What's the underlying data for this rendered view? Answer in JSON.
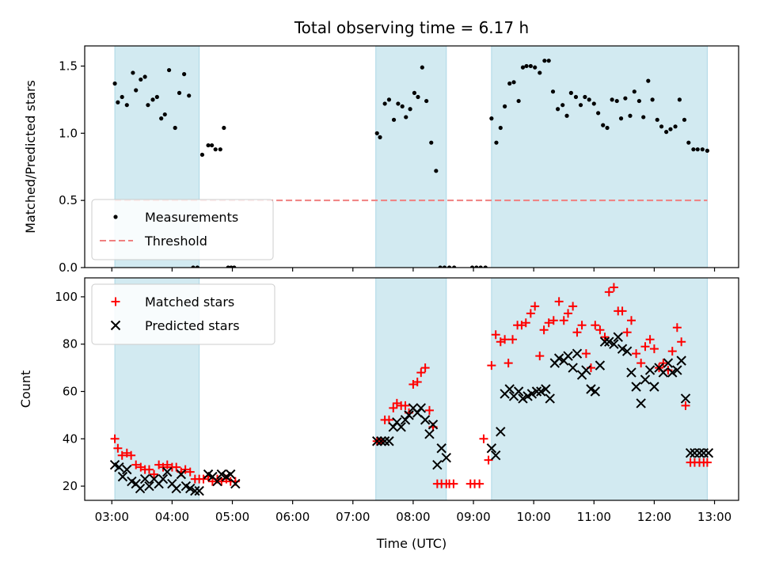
{
  "chart_data": {
    "title": "Total observing time = 6.17 h",
    "xlabel": "Time (UTC)",
    "x_unit": "hours UTC",
    "xlim": [
      2.55,
      13.4
    ],
    "x_ticks": [
      3,
      4,
      5,
      6,
      7,
      8,
      9,
      10,
      11,
      12,
      13
    ],
    "x_tick_labels": [
      "03:00",
      "04:00",
      "05:00",
      "06:00",
      "07:00",
      "08:00",
      "09:00",
      "10:00",
      "11:00",
      "12:00",
      "13:00"
    ],
    "observing_windows": [
      [
        3.05,
        4.45
      ],
      [
        7.38,
        8.55
      ],
      [
        9.3,
        12.88
      ]
    ],
    "window_color": "#add8e6",
    "panels": [
      {
        "type": "scatter",
        "ylabel": "Matched/Predicted stars",
        "ylim": [
          0,
          1.65
        ],
        "y_ticks": [
          0.0,
          0.5,
          1.0,
          1.5
        ],
        "y_tick_labels": [
          "0.0",
          "0.5",
          "1.0",
          "1.5"
        ],
        "legend_position": "lower-left",
        "series": [
          {
            "name": "Measurements",
            "marker": "dot",
            "color": "#000000",
            "x": [
              3.05,
              3.1,
              3.17,
              3.25,
              3.35,
              3.4,
              3.48,
              3.55,
              3.6,
              3.68,
              3.75,
              3.82,
              3.88,
              3.95,
              4.05,
              4.12,
              4.2,
              4.28,
              4.35,
              4.42,
              4.5,
              4.6,
              4.66,
              4.72,
              4.8,
              4.86,
              4.93,
              4.98,
              5.03
            ],
            "y": [
              1.37,
              1.23,
              1.27,
              1.21,
              1.45,
              1.32,
              1.4,
              1.42,
              1.21,
              1.25,
              1.27,
              1.11,
              1.14,
              1.47,
              1.04,
              1.3,
              1.44,
              1.28,
              0.0,
              0.0,
              0.84,
              0.91,
              0.91,
              0.88,
              0.88,
              1.04,
              0.0,
              0.0,
              0.0
            ]
          },
          {
            "name": "",
            "marker": "dot",
            "color": "#000000",
            "x": [
              7.4,
              7.45,
              7.53,
              7.6,
              7.68,
              7.75,
              7.82,
              7.88,
              7.95,
              8.02,
              8.08,
              8.15,
              8.22,
              8.3,
              8.38,
              8.45,
              8.52,
              8.6,
              8.68,
              8.98,
              9.05,
              9.12,
              9.2
            ],
            "y": [
              1.0,
              0.97,
              1.22,
              1.25,
              1.1,
              1.22,
              1.2,
              1.12,
              1.18,
              1.3,
              1.27,
              1.49,
              1.24,
              0.93,
              0.72,
              0.0,
              0.0,
              0.0,
              0.0,
              0.0,
              0.0,
              0.0,
              0.0
            ]
          },
          {
            "name": "",
            "marker": "dot",
            "color": "#000000",
            "x": [
              9.3,
              9.38,
              9.45,
              9.52,
              9.6,
              9.67,
              9.75,
              9.82,
              9.88,
              9.95,
              10.02,
              10.1,
              10.18,
              10.25,
              10.32,
              10.4,
              10.48,
              10.55,
              10.62,
              10.7,
              10.78,
              10.85,
              10.92,
              11.0,
              11.07,
              11.15,
              11.22,
              11.3,
              11.38,
              11.45,
              11.52,
              11.6,
              11.67,
              11.75,
              11.82,
              11.9,
              11.97,
              12.05,
              12.12,
              12.2,
              12.27,
              12.35,
              12.42,
              12.5,
              12.57,
              12.65,
              12.72,
              12.8,
              12.88
            ],
            "y": [
              1.11,
              0.93,
              1.04,
              1.2,
              1.37,
              1.38,
              1.24,
              1.49,
              1.5,
              1.5,
              1.49,
              1.45,
              1.54,
              1.54,
              1.31,
              1.18,
              1.21,
              1.13,
              1.3,
              1.27,
              1.21,
              1.27,
              1.25,
              1.22,
              1.15,
              1.06,
              1.04,
              1.25,
              1.24,
              1.11,
              1.26,
              1.13,
              1.31,
              1.24,
              1.12,
              1.39,
              1.25,
              1.1,
              1.05,
              1.01,
              1.03,
              1.05,
              1.25,
              1.1,
              0.93,
              0.88,
              0.88,
              0.88,
              0.87
            ]
          }
        ],
        "threshold": {
          "name": "Threshold",
          "y": 0.5,
          "x_range": [
            3.05,
            12.88
          ],
          "color": "#f08080"
        }
      },
      {
        "type": "scatter",
        "ylabel": "Count",
        "ylim": [
          14,
          108
        ],
        "y_ticks": [
          20,
          40,
          60,
          80,
          100
        ],
        "y_tick_labels": [
          "20",
          "40",
          "60",
          "80",
          "100"
        ],
        "legend_position": "top-left",
        "series": [
          {
            "name": "Matched stars",
            "marker": "plus",
            "color": "#ff0000",
            "x": [
              3.05,
              3.1,
              3.17,
              3.25,
              3.32,
              3.4,
              3.48,
              3.55,
              3.62,
              3.7,
              3.78,
              3.85,
              3.92,
              4.0,
              4.07,
              4.15,
              4.22,
              4.3,
              4.38,
              4.45,
              4.52,
              4.6,
              4.67,
              4.75,
              4.82,
              4.9,
              4.97,
              5.05,
              7.4,
              7.47,
              7.53,
              7.6,
              7.67,
              7.73,
              7.8,
              7.87,
              7.93,
              8.0,
              8.07,
              8.13,
              8.2,
              8.27,
              8.33,
              8.4,
              8.47,
              8.55,
              8.6,
              8.67,
              8.95,
              9.02,
              9.1,
              9.17,
              9.25,
              9.3,
              9.37,
              9.45,
              9.52,
              9.58,
              9.65,
              9.73,
              9.8,
              9.87,
              9.95,
              10.02,
              10.1,
              10.17,
              10.25,
              10.33,
              10.42,
              10.5,
              10.57,
              10.65,
              10.72,
              10.8,
              10.87,
              10.95,
              11.02,
              11.1,
              11.18,
              11.25,
              11.33,
              11.4,
              11.47,
              11.55,
              11.62,
              11.7,
              11.78,
              11.85,
              11.93,
              12.0,
              12.08,
              12.15,
              12.23,
              12.3,
              12.38,
              12.45,
              12.52,
              12.6,
              12.67,
              12.75,
              12.82,
              12.88
            ],
            "y": [
              40,
              36,
              33,
              34,
              33,
              29,
              28,
              27,
              27,
              25,
              29,
              28,
              29,
              28,
              28,
              26,
              27,
              26,
              23,
              23,
              23,
              24,
              22,
              23,
              22,
              23,
              22,
              22,
              39,
              39,
              48,
              48,
              53,
              55,
              54,
              54,
              51,
              63,
              64,
              68,
              70,
              52,
              45,
              21,
              21,
              21,
              21,
              21,
              21,
              21,
              21,
              40,
              31,
              71,
              84,
              81,
              82,
              72,
              82,
              88,
              88,
              89,
              93,
              96,
              75,
              86,
              89,
              90,
              98,
              90,
              93,
              96,
              85,
              88,
              76,
              70,
              88,
              86,
              83,
              102,
              104,
              94,
              94,
              85,
              90,
              76,
              72,
              79,
              82,
              78,
              70,
              72,
              69,
              77,
              87,
              81,
              54,
              30,
              30,
              30,
              30,
              30
            ],
            "x_note": ""
          },
          {
            "name": "Predicted stars",
            "marker": "x",
            "color": "#000000",
            "x": [
              3.05,
              3.12,
              3.18,
              3.25,
              3.33,
              3.4,
              3.47,
              3.55,
              3.62,
              3.7,
              3.78,
              3.85,
              3.92,
              4.0,
              4.07,
              4.15,
              4.23,
              4.3,
              4.38,
              4.45,
              4.6,
              4.67,
              4.75,
              4.82,
              4.9,
              4.97,
              5.05,
              7.4,
              7.47,
              7.53,
              7.6,
              7.67,
              7.73,
              7.8,
              7.87,
              7.93,
              8.0,
              8.07,
              8.13,
              8.2,
              8.27,
              8.33,
              8.4,
              8.47,
              8.55,
              9.3,
              9.37,
              9.45,
              9.52,
              9.6,
              9.67,
              9.75,
              9.82,
              9.9,
              9.97,
              10.05,
              10.12,
              10.2,
              10.27,
              10.35,
              10.42,
              10.5,
              10.57,
              10.65,
              10.72,
              10.8,
              10.87,
              10.95,
              11.02,
              11.1,
              11.18,
              11.25,
              11.33,
              11.4,
              11.47,
              11.55,
              11.62,
              11.7,
              11.78,
              11.85,
              11.93,
              12.0,
              12.08,
              12.15,
              12.23,
              12.3,
              12.38,
              12.45,
              12.52,
              12.6,
              12.67,
              12.75,
              12.82,
              12.9
            ],
            "y": [
              29,
              28,
              24,
              27,
              22,
              21,
              19,
              23,
              20,
              23,
              21,
              23,
              26,
              21,
              19,
              25,
              20,
              19,
              18,
              18,
              25,
              24,
              22,
              25,
              24,
              25,
              21,
              39,
              39,
              39,
              39,
              45,
              47,
              45,
              48,
              50,
              53,
              51,
              53,
              48,
              42,
              46,
              29,
              36,
              32,
              36,
              33,
              43,
              59,
              61,
              58,
              60,
              57,
              58,
              59,
              60,
              60,
              61,
              57,
              72,
              74,
              73,
              75,
              70,
              76,
              67,
              69,
              61,
              60,
              71,
              81,
              81,
              80,
              83,
              78,
              77,
              68,
              62,
              55,
              65,
              69,
              62,
              70,
              68,
              72,
              68,
              69,
              73,
              57,
              34,
              34,
              34,
              34,
              34
            ]
          }
        ]
      }
    ]
  }
}
